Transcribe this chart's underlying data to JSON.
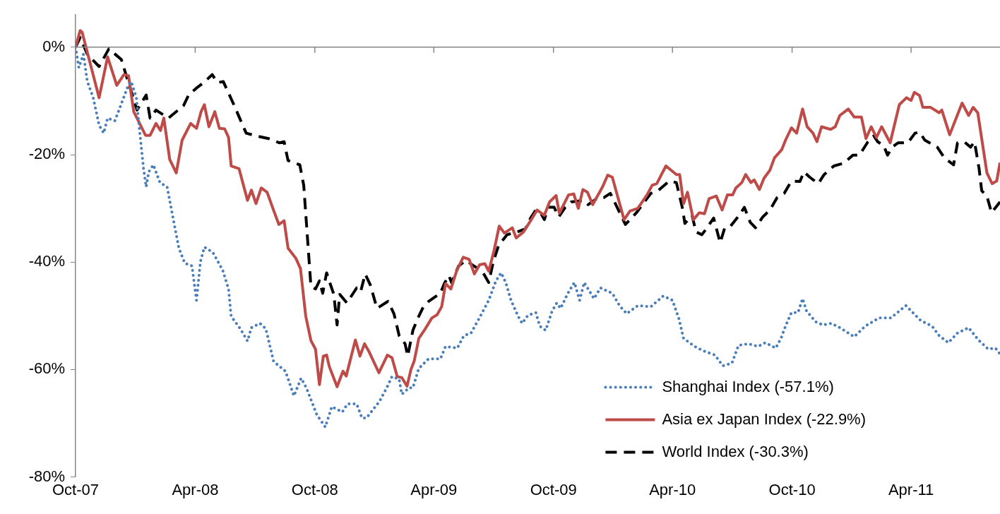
{
  "chart_data": {
    "type": "line",
    "legend": "bottom right",
    "marker": "none",
    "grid": false,
    "xlim": [
      "2007-10-01",
      "2011-08-15"
    ],
    "xticks": [
      {
        "value": "2007-10-01",
        "label": "Oct-07"
      },
      {
        "value": "2008-04-01",
        "label": "Apr-08"
      },
      {
        "value": "2008-10-01",
        "label": "Oct-08"
      },
      {
        "value": "2009-04-01",
        "label": "Apr-09"
      },
      {
        "value": "2009-10-01",
        "label": "Oct-09"
      },
      {
        "value": "2010-04-01",
        "label": "Apr-10"
      },
      {
        "value": "2010-10-01",
        "label": "Oct-10"
      },
      {
        "value": "2011-04-01",
        "label": "Apr-11"
      }
    ],
    "ylim": [
      -80,
      6
    ],
    "ref_lines": [
      {
        "axis": "y",
        "value": 0,
        "color": "#868686"
      }
    ],
    "yticks": [
      {
        "value": 0,
        "label": "0%"
      },
      {
        "value": -20,
        "label": "-20%"
      },
      {
        "value": -40,
        "label": "-40%"
      },
      {
        "value": -60,
        "label": "-60%"
      },
      {
        "value": -80,
        "label": "-80%"
      }
    ],
    "series": [
      {
        "name": "Shanghai Index (-57.1%)",
        "color": "#4a7ebb",
        "line_style": "dotted",
        "x": [
          "2007-10-01",
          "2007-10-06",
          "2007-10-13",
          "2007-10-19",
          "2007-10-28",
          "2007-11-06",
          "2007-11-13",
          "2007-11-19",
          "2007-11-30",
          "2007-12-08",
          "2007-12-19",
          "2007-12-25",
          "2008-01-02",
          "2008-01-06",
          "2008-01-13",
          "2008-01-17",
          "2008-01-21",
          "2008-01-28",
          "2008-02-07",
          "2008-02-18",
          "2008-02-24",
          "2008-03-01",
          "2008-03-07",
          "2008-03-16",
          "2008-03-27",
          "2008-04-03",
          "2008-04-09",
          "2008-04-15",
          "2008-04-28",
          "2008-05-13",
          "2008-05-22",
          "2008-05-26",
          "2008-06-09",
          "2008-06-20",
          "2008-06-26",
          "2008-07-09",
          "2008-07-18",
          "2008-07-30",
          "2008-08-17",
          "2008-08-30",
          "2008-09-10",
          "2008-09-18",
          "2008-10-04",
          "2008-10-17",
          "2008-10-27",
          "2008-11-12",
          "2008-11-20",
          "2008-12-04",
          "2008-12-12",
          "2008-12-19",
          "2009-01-08",
          "2009-01-19",
          "2009-01-27",
          "2009-02-07",
          "2009-02-11",
          "2009-02-22",
          "2009-02-28",
          "2009-03-09",
          "2009-03-24",
          "2009-04-11",
          "2009-04-19",
          "2009-05-07",
          "2009-05-17",
          "2009-05-28",
          "2009-06-11",
          "2009-06-24",
          "2009-07-05",
          "2009-07-13",
          "2009-07-20",
          "2009-07-28",
          "2009-08-08",
          "2009-08-14",
          "2009-08-23",
          "2009-09-04",
          "2009-09-10",
          "2009-09-19",
          "2009-09-29",
          "2009-10-06",
          "2009-10-12",
          "2009-10-23",
          "2009-11-02",
          "2009-11-10",
          "2009-11-17",
          "2009-11-23",
          "2009-12-02",
          "2009-12-12",
          "2009-12-30",
          "2010-01-10",
          "2010-01-21",
          "2010-02-07",
          "2010-02-27",
          "2010-03-18",
          "2010-04-01",
          "2010-04-11",
          "2010-04-18",
          "2010-05-05",
          "2010-05-18",
          "2010-06-05",
          "2010-06-17",
          "2010-07-01",
          "2010-07-11",
          "2010-07-26",
          "2010-08-10",
          "2010-08-21",
          "2010-09-06",
          "2010-09-14",
          "2010-09-21",
          "2010-09-30",
          "2010-10-10",
          "2010-10-17",
          "2010-10-23",
          "2010-11-06",
          "2010-11-17",
          "2010-11-30",
          "2010-12-13",
          "2011-01-04",
          "2011-01-21",
          "2011-02-11",
          "2011-03-01",
          "2011-03-24",
          "2011-04-16",
          "2011-05-03",
          "2011-05-14",
          "2011-05-28",
          "2011-06-11",
          "2011-06-28",
          "2011-07-13",
          "2011-07-28",
          "2011-08-08",
          "2011-08-15"
        ],
        "values": [
          0,
          -3.8,
          -1.3,
          -6.4,
          -9.4,
          -14.5,
          -16,
          -13.2,
          -13.7,
          -11.2,
          -7.6,
          -6.4,
          -9.4,
          -14.5,
          -22.6,
          -26,
          -23.2,
          -21.9,
          -25.2,
          -26,
          -29.8,
          -33.6,
          -37.4,
          -40.2,
          -40.7,
          -47.1,
          -39.9,
          -37.2,
          -38.2,
          -41.5,
          -45,
          -50.1,
          -52.4,
          -54.7,
          -52.2,
          -51.4,
          -52.4,
          -58.5,
          -60.3,
          -64.9,
          -61.6,
          -63.4,
          -68.4,
          -70.7,
          -66.9,
          -67.9,
          -66.4,
          -66.4,
          -69,
          -69,
          -65.9,
          -63.4,
          -61.3,
          -61.8,
          -64.6,
          -63.4,
          -63.4,
          -59.8,
          -58,
          -58,
          -55.7,
          -56,
          -53.7,
          -53.2,
          -50.1,
          -47.1,
          -43.5,
          -42,
          -43.8,
          -47.1,
          -50.1,
          -51.4,
          -49.9,
          -49.4,
          -51.9,
          -52.7,
          -49.1,
          -47.6,
          -48.6,
          -45.8,
          -43.8,
          -47.1,
          -43.8,
          -45,
          -46.8,
          -44.8,
          -45.8,
          -48.1,
          -49.6,
          -48.1,
          -48.3,
          -46.3,
          -47.1,
          -50.6,
          -54.2,
          -55.7,
          -56.5,
          -57.3,
          -59.3,
          -58.8,
          -55.5,
          -55.2,
          -55.7,
          -55,
          -56,
          -54.2,
          -51.9,
          -49.4,
          -49.4,
          -46.8,
          -49.1,
          -51.1,
          -51.7,
          -51.4,
          -52.2,
          -53.9,
          -51.9,
          -50.4,
          -50.4,
          -48.1,
          -50.9,
          -51.9,
          -53.7,
          -55,
          -53.2,
          -52.2,
          -54.5,
          -56.2,
          -56,
          -57.1
        ]
      },
      {
        "name": "Asia ex Japan Index (-22.9%)",
        "color": "#be4b48",
        "line_style": "solid",
        "x": [
          "2007-10-01",
          "2007-10-08",
          "2007-10-11",
          "2007-11-06",
          "2007-11-19",
          "2007-12-03",
          "2007-12-14",
          "2007-12-21",
          "2007-12-29",
          "2008-01-16",
          "2008-01-23",
          "2008-02-01",
          "2008-02-08",
          "2008-02-13",
          "2008-02-22",
          "2008-03-03",
          "2008-03-12",
          "2008-03-25",
          "2008-04-03",
          "2008-04-10",
          "2008-04-15",
          "2008-04-22",
          "2008-05-01",
          "2008-05-08",
          "2008-05-16",
          "2008-05-22",
          "2008-05-26",
          "2008-06-07",
          "2008-06-20",
          "2008-06-26",
          "2008-07-03",
          "2008-07-11",
          "2008-07-20",
          "2008-07-30",
          "2008-08-07",
          "2008-08-15",
          "2008-08-21",
          "2008-09-02",
          "2008-09-09",
          "2008-09-17",
          "2008-09-25",
          "2008-10-02",
          "2008-10-08",
          "2008-10-14",
          "2008-10-19",
          "2008-10-23",
          "2008-11-04",
          "2008-11-13",
          "2008-11-18",
          "2008-12-02",
          "2008-12-09",
          "2008-12-16",
          "2008-12-23",
          "2009-01-07",
          "2009-01-20",
          "2009-01-27",
          "2009-02-04",
          "2009-02-11",
          "2009-02-19",
          "2009-02-25",
          "2009-03-02",
          "2009-03-09",
          "2009-03-19",
          "2009-03-29",
          "2009-04-06",
          "2009-04-13",
          "2009-04-19",
          "2009-04-27",
          "2009-05-06",
          "2009-05-16",
          "2009-05-25",
          "2009-06-02",
          "2009-06-10",
          "2009-06-18",
          "2009-06-24",
          "2009-07-02",
          "2009-07-10",
          "2009-07-18",
          "2009-07-30",
          "2009-08-05",
          "2009-08-16",
          "2009-08-27",
          "2009-09-06",
          "2009-09-17",
          "2009-09-25",
          "2009-10-05",
          "2009-10-10",
          "2009-10-24",
          "2009-11-01",
          "2009-11-08",
          "2009-11-15",
          "2009-11-22",
          "2009-11-30",
          "2009-12-15",
          "2009-12-23",
          "2009-12-30",
          "2010-01-17",
          "2010-01-26",
          "2010-02-07",
          "2010-02-21",
          "2010-03-01",
          "2010-03-08",
          "2010-03-22",
          "2010-04-07",
          "2010-04-12",
          "2010-04-18",
          "2010-04-24",
          "2010-05-03",
          "2010-05-12",
          "2010-05-20",
          "2010-05-27",
          "2010-06-07",
          "2010-06-16",
          "2010-06-24",
          "2010-07-02",
          "2010-07-07",
          "2010-07-16",
          "2010-07-22",
          "2010-07-30",
          "2010-08-04",
          "2010-08-12",
          "2010-08-19",
          "2010-08-28",
          "2010-09-04",
          "2010-09-15",
          "2010-09-21",
          "2010-09-30",
          "2010-10-08",
          "2010-10-17",
          "2010-10-24",
          "2010-11-02",
          "2010-11-08",
          "2010-11-15",
          "2010-11-29",
          "2010-12-06",
          "2010-12-13",
          "2010-12-26",
          "2011-01-04",
          "2011-01-15",
          "2011-01-22",
          "2011-01-30",
          "2011-02-07",
          "2011-02-15",
          "2011-02-28",
          "2011-03-14",
          "2011-03-25",
          "2011-04-01",
          "2011-04-06",
          "2011-04-14",
          "2011-04-19",
          "2011-05-01",
          "2011-05-14",
          "2011-05-18",
          "2011-05-30",
          "2011-06-18",
          "2011-06-28",
          "2011-07-05",
          "2011-07-12",
          "2011-07-26",
          "2011-08-03",
          "2011-08-10",
          "2011-08-15"
        ],
        "values": [
          0,
          3.1,
          2.8,
          -9.4,
          -1.8,
          -7.1,
          -5.1,
          -5.3,
          -12,
          -16.4,
          -16.4,
          -14.2,
          -15.5,
          -13.2,
          -20.9,
          -23.4,
          -17.3,
          -14.2,
          -15.1,
          -12,
          -10.7,
          -14.8,
          -12,
          -15.1,
          -15.2,
          -16.8,
          -22.1,
          -22.6,
          -28.5,
          -26.6,
          -29.1,
          -26.2,
          -27,
          -30.4,
          -33,
          -32.3,
          -37.4,
          -39.3,
          -41.2,
          -50,
          -54.6,
          -56.2,
          -62.8,
          -57.5,
          -57.3,
          -59.4,
          -63.2,
          -60.3,
          -61.2,
          -54.5,
          -57.5,
          -55.2,
          -56.7,
          -60.6,
          -57.3,
          -57.8,
          -61.3,
          -61.5,
          -63.1,
          -60,
          -58.4,
          -54.2,
          -52.4,
          -50.4,
          -49.8,
          -48.3,
          -44,
          -45,
          -41.6,
          -39.1,
          -39.5,
          -42.2,
          -40.5,
          -40.3,
          -41.7,
          -37.9,
          -33.3,
          -34.6,
          -33.6,
          -35.5,
          -34.4,
          -32.3,
          -30.3,
          -31.3,
          -28.8,
          -27.6,
          -30.9,
          -27.5,
          -27.3,
          -30,
          -26.5,
          -27,
          -29.3,
          -26,
          -23.8,
          -24.2,
          -32.1,
          -30.5,
          -30,
          -27.5,
          -25.7,
          -25.4,
          -22.1,
          -23.7,
          -23.7,
          -29.1,
          -27,
          -32.1,
          -30.8,
          -31,
          -28.2,
          -27.7,
          -30.3,
          -27.5,
          -27.5,
          -26.2,
          -25.2,
          -23.7,
          -25.2,
          -24.7,
          -26.5,
          -24.4,
          -22.9,
          -20.6,
          -19.1,
          -17.3,
          -15,
          -16,
          -11.5,
          -14.8,
          -16,
          -17.6,
          -14.8,
          -15.3,
          -14.8,
          -12.7,
          -11.5,
          -13,
          -13,
          -17,
          -14.8,
          -16.8,
          -14.8,
          -17.8,
          -10.7,
          -9.4,
          -9.9,
          -8.4,
          -9,
          -11.2,
          -11.2,
          -12.2,
          -11.7,
          -16.3,
          -10.4,
          -12.7,
          -11.2,
          -12.2,
          -23.4,
          -25.4,
          -24.9,
          -21.5
        ]
      },
      {
        "name": "World Index (-30.3%)",
        "color": "#000000",
        "line_style": "dashed",
        "x": [
          "2007-10-01",
          "2007-10-08",
          "2007-10-19",
          "2007-11-06",
          "2007-11-21",
          "2007-12-10",
          "2007-12-23",
          "2008-01-03",
          "2008-01-17",
          "2008-01-23",
          "2008-02-01",
          "2008-02-20",
          "2008-03-14",
          "2008-03-22",
          "2008-04-03",
          "2008-04-14",
          "2008-04-27",
          "2008-05-05",
          "2008-05-14",
          "2008-05-29",
          "2008-06-18",
          "2008-07-03",
          "2008-07-22",
          "2008-08-08",
          "2008-08-15",
          "2008-08-21",
          "2008-09-08",
          "2008-09-14",
          "2008-09-25",
          "2008-10-02",
          "2008-10-08",
          "2008-10-13",
          "2008-10-19",
          "2008-10-23",
          "2008-10-30",
          "2008-11-04",
          "2008-11-08",
          "2008-11-19",
          "2008-12-04",
          "2008-12-10",
          "2008-12-17",
          "2008-12-25",
          "2009-01-04",
          "2009-01-21",
          "2009-01-30",
          "2009-02-07",
          "2009-02-16",
          "2009-02-20",
          "2009-02-28",
          "2009-03-07",
          "2009-03-16",
          "2009-03-24",
          "2009-04-11",
          "2009-04-17",
          "2009-04-24",
          "2009-04-28",
          "2009-05-09",
          "2009-05-20",
          "2009-06-01",
          "2009-06-14",
          "2009-06-24",
          "2009-07-01",
          "2009-07-09",
          "2009-07-22",
          "2009-08-06",
          "2009-08-19",
          "2009-08-27",
          "2009-09-04",
          "2009-09-12",
          "2009-09-17",
          "2009-09-23",
          "2009-10-02",
          "2009-10-09",
          "2009-10-19",
          "2009-10-28",
          "2009-11-17",
          "2009-11-23",
          "2009-12-06",
          "2009-12-17",
          "2009-12-27",
          "2010-01-19",
          "2010-02-05",
          "2010-02-14",
          "2010-02-27",
          "2010-03-10",
          "2010-03-27",
          "2010-04-07",
          "2010-04-16",
          "2010-04-20",
          "2010-05-01",
          "2010-05-07",
          "2010-05-16",
          "2010-05-24",
          "2010-06-03",
          "2010-06-13",
          "2010-06-20",
          "2010-06-29",
          "2010-07-12",
          "2010-07-20",
          "2010-07-29",
          "2010-08-06",
          "2010-08-17",
          "2010-08-28",
          "2010-09-08",
          "2010-09-19",
          "2010-09-30",
          "2010-10-13",
          "2010-10-19",
          "2010-10-28",
          "2010-11-10",
          "2010-11-19",
          "2010-12-04",
          "2010-12-19",
          "2011-01-02",
          "2011-01-12",
          "2011-01-25",
          "2011-02-03",
          "2011-02-09",
          "2011-02-18",
          "2011-02-24",
          "2011-03-03",
          "2011-03-12",
          "2011-03-27",
          "2011-04-07",
          "2011-04-14",
          "2011-04-22",
          "2011-05-11",
          "2011-05-22",
          "2011-06-05",
          "2011-06-11",
          "2011-06-22",
          "2011-07-01",
          "2011-07-07",
          "2011-07-14",
          "2011-07-18",
          "2011-07-26",
          "2011-08-02",
          "2011-08-15"
        ],
        "values": [
          0,
          1.8,
          -1.3,
          -3.6,
          -0.3,
          -2.3,
          -7.4,
          -11.7,
          -8.9,
          -13.2,
          -11.7,
          -13.2,
          -10.9,
          -8.9,
          -7.6,
          -6.6,
          -5.1,
          -6.6,
          -6.4,
          -10.4,
          -16,
          -16.5,
          -17,
          -17.8,
          -17.6,
          -21.1,
          -21.9,
          -25.7,
          -44.5,
          -45,
          -43.5,
          -45.8,
          -42,
          -43.5,
          -46,
          -51.7,
          -46,
          -47.6,
          -44.8,
          -45.5,
          -42.2,
          -44.3,
          -48.6,
          -47.3,
          -49.6,
          -53.7,
          -55.2,
          -57.5,
          -52.7,
          -50.6,
          -48.3,
          -47.3,
          -45.8,
          -44,
          -42.5,
          -43.8,
          -40.7,
          -39.7,
          -40.7,
          -41.7,
          -43.8,
          -39.9,
          -36.9,
          -34.9,
          -34.4,
          -33.8,
          -31.8,
          -30.3,
          -31,
          -32.1,
          -29.8,
          -29.8,
          -31.6,
          -29.8,
          -28.8,
          -28.5,
          -29.3,
          -28.2,
          -28,
          -27.2,
          -33,
          -30.8,
          -29.3,
          -27.2,
          -26.7,
          -24.9,
          -25.2,
          -29.8,
          -32.8,
          -31.3,
          -34.4,
          -34.9,
          -33.6,
          -31.8,
          -36.4,
          -33.6,
          -33.3,
          -31.3,
          -29.8,
          -32.6,
          -33.6,
          -31.6,
          -30.3,
          -28,
          -27.2,
          -24.9,
          -25,
          -23.2,
          -24.2,
          -25.4,
          -23.7,
          -22.1,
          -21.6,
          -20.1,
          -20.1,
          -17.6,
          -16.5,
          -17.6,
          -18.3,
          -20.1,
          -18.6,
          -17.8,
          -17.8,
          -16,
          -15.8,
          -17.3,
          -18.6,
          -20.6,
          -21.9,
          -17.8,
          -17.7,
          -18.6,
          -17.6,
          -22.6,
          -26.7,
          -27.7,
          -30.8,
          -28.8
        ]
      }
    ]
  }
}
